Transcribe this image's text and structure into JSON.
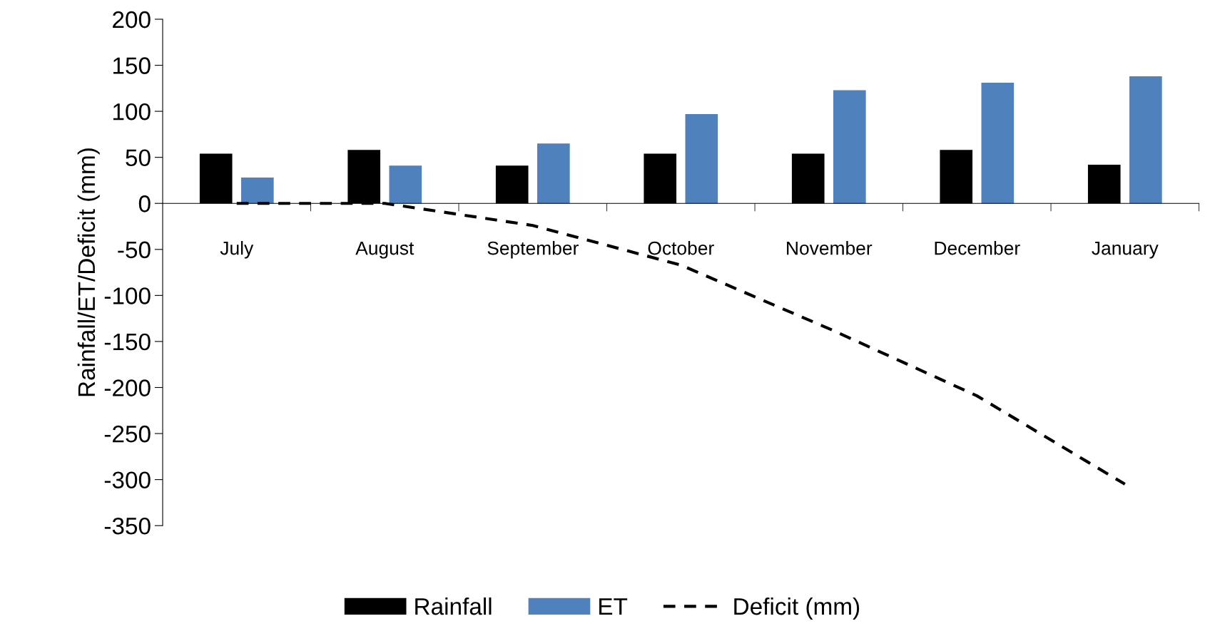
{
  "chart_data": {
    "type": "bar",
    "ylabel": "Rainfall/ET/Deficit (mm)",
    "categories": [
      "July",
      "August",
      "September",
      "October",
      "November",
      "December",
      "January"
    ],
    "series": [
      {
        "name": "Rainfall",
        "color": "#000000",
        "values": [
          54,
          58,
          41,
          54,
          54,
          58,
          42
        ]
      },
      {
        "name": "ET",
        "color": "#4f81bd",
        "values": [
          28,
          41,
          65,
          97,
          123,
          131,
          138
        ]
      },
      {
        "name": "Deficit (mm)",
        "type": "line",
        "color": "#000000",
        "line_style": "dashed",
        "values": [
          0,
          0,
          -24,
          -67,
          -136,
          -209,
          -305
        ]
      }
    ],
    "ylim": [
      -350,
      200
    ],
    "yticks": [
      -350,
      -300,
      -250,
      -200,
      -150,
      -100,
      -50,
      0,
      50,
      100,
      150,
      200
    ],
    "grid": false,
    "legend": "bottom"
  }
}
